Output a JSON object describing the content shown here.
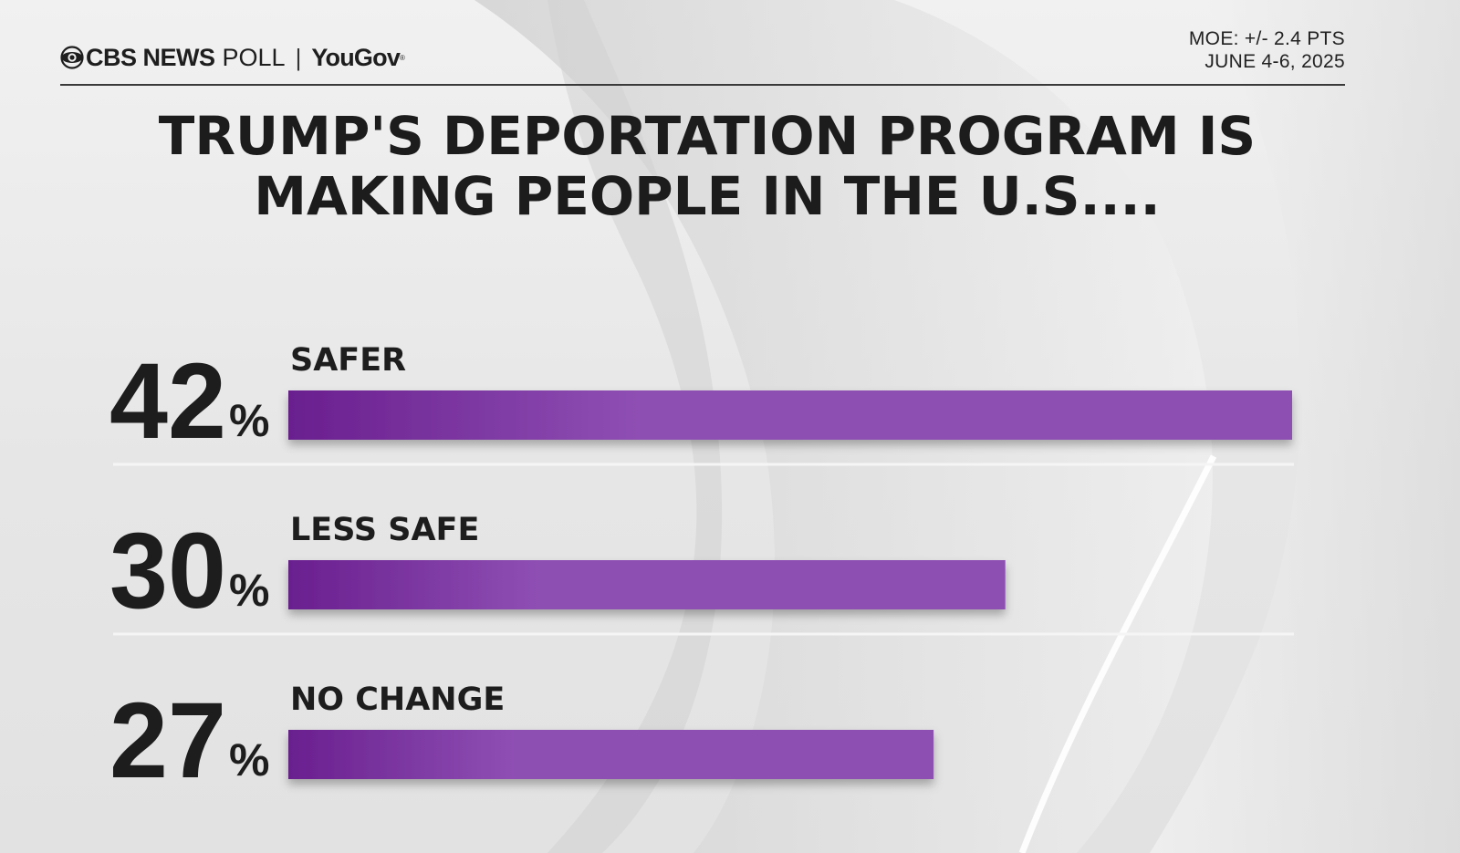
{
  "header": {
    "brand_cbs": "CBS NEWS",
    "brand_poll": "POLL",
    "brand_separator": "|",
    "brand_partner": "YouGov",
    "moe": "MOE: +/- 2.4 PTS",
    "dates": "JUNE 4-6, 2025"
  },
  "title_lines": [
    "TRUMP'S DEPORTATION PROGRAM IS",
    "MAKING PEOPLE IN THE U.S...."
  ],
  "colors": {
    "bar_start": "#6a1f8f",
    "bar_end": "#8e4fb3",
    "text": "#1d1d1d",
    "divider": "#f5f5f5"
  },
  "chart_data": {
    "type": "bar",
    "orientation": "horizontal",
    "title": "TRUMP'S DEPORTATION PROGRAM IS MAKING PEOPLE IN THE U.S....",
    "categories": [
      "SAFER",
      "LESS SAFE",
      "NO CHANGE"
    ],
    "values": [
      42,
      30,
      27
    ],
    "value_labels": [
      "42",
      "30",
      "27"
    ],
    "unit": "%",
    "xlim": [
      0,
      42
    ],
    "grid": false,
    "legend": "none"
  }
}
